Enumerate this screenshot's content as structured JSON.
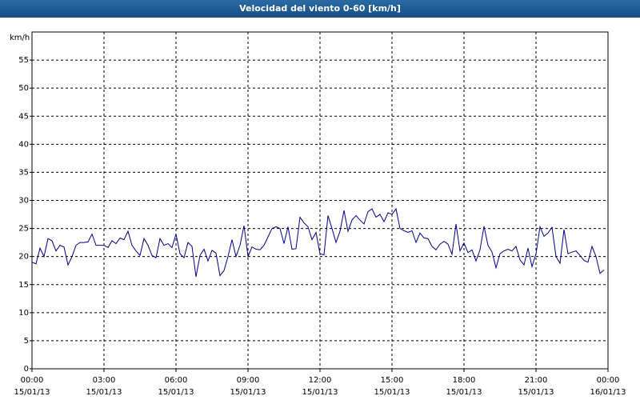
{
  "chart_data": {
    "type": "line",
    "title": "Velocidad del viento 0-60 [km/h]",
    "y_label": "km/h",
    "x": [
      0,
      10,
      20,
      30,
      40,
      50,
      60,
      70,
      80,
      90,
      100,
      110,
      120,
      130,
      140,
      150,
      160,
      170,
      180,
      190,
      200,
      210,
      220,
      230,
      240,
      250,
      260,
      270,
      280,
      290,
      300,
      310,
      320,
      330,
      340,
      350,
      360,
      370,
      380,
      390,
      400,
      410,
      420,
      430,
      440,
      450,
      460,
      470,
      480,
      490,
      500,
      510,
      520,
      530,
      540,
      550,
      560,
      570,
      580,
      590,
      600,
      610,
      620,
      630,
      640,
      650,
      660,
      670,
      680,
      690,
      700,
      710,
      720,
      730,
      740,
      750,
      760,
      770,
      780,
      790,
      800,
      810,
      820,
      830,
      840,
      850,
      860,
      870,
      880,
      890,
      900,
      910,
      920,
      930,
      940,
      950,
      960,
      970,
      980,
      990,
      1000,
      1010,
      1020,
      1030,
      1040,
      1050,
      1060,
      1070,
      1080,
      1090,
      1100,
      1110,
      1120,
      1130,
      1140,
      1150,
      1160,
      1170,
      1180,
      1190,
      1200,
      1210,
      1220,
      1230,
      1240,
      1250,
      1260,
      1270,
      1280,
      1290,
      1300,
      1310,
      1320,
      1330,
      1340,
      1350,
      1360,
      1370,
      1380,
      1390,
      1400,
      1410,
      1420,
      1430
    ],
    "series": [
      {
        "color": "#00008b",
        "values": [
          19,
          18.7,
          21.5,
          20,
          23.2,
          22.8,
          21,
          22,
          21.7,
          18.5,
          20,
          22,
          22.5,
          22.5,
          22.6,
          24,
          22,
          22,
          22,
          21.6,
          22.8,
          22.3,
          23.3,
          23,
          24.5,
          22,
          21,
          20.2,
          23.2,
          22,
          20.2,
          19.8,
          23.2,
          22,
          22.3,
          21.6,
          24,
          20.5,
          19.8,
          22.5,
          21.8,
          16.4,
          20.2,
          21.3,
          19.2,
          21.1,
          20.6,
          16.6,
          17.5,
          20,
          23,
          20,
          22,
          25.5,
          20,
          21.7,
          21.3,
          21.2,
          22,
          23.5,
          25,
          25.3,
          25,
          22.3,
          25.3,
          21.3,
          21.4,
          27,
          26,
          25.3,
          23,
          24.3,
          20.5,
          20.3,
          27.3,
          25,
          22.5,
          24.5,
          28.2,
          24.5,
          26.5,
          27.3,
          26.5,
          25.8,
          28,
          28.5,
          27,
          27.5,
          26.2,
          27.8,
          27.5,
          28.5,
          25,
          24.6,
          24.3,
          24.6,
          22.5,
          24.2,
          23.3,
          23.2,
          21.8,
          21.2,
          22.2,
          22.7,
          22.2,
          20.4,
          25.8,
          21,
          22.4,
          20.7,
          21.2,
          19.2,
          21.2,
          25.4,
          22,
          20.8,
          18,
          20.5,
          21,
          21.3,
          21,
          21.8,
          19.4,
          18.5,
          21.5,
          18.2,
          20.5,
          25.3,
          23.6,
          24.2,
          25.2,
          20,
          18.8,
          24.8,
          20.5,
          20.8,
          21,
          20.2,
          19.3,
          19,
          21.8,
          20,
          17,
          17.6
        ]
      }
    ],
    "xlim": [
      0,
      1440
    ],
    "xticks": [
      {
        "value": 0,
        "label": "00:00"
      },
      {
        "value": 180,
        "label": "03:00"
      },
      {
        "value": 360,
        "label": "06:00"
      },
      {
        "value": 540,
        "label": "09:00"
      },
      {
        "value": 720,
        "label": "12:00"
      },
      {
        "value": 900,
        "label": "15:00"
      },
      {
        "value": 1080,
        "label": "18:00"
      },
      {
        "value": 1260,
        "label": "21:00"
      },
      {
        "value": 1440,
        "label": "00:00"
      }
    ],
    "xtick_dates": [
      "15/01/13",
      "15/01/13",
      "15/01/13",
      "15/01/13",
      "15/01/13",
      "15/01/13",
      "15/01/13",
      "15/01/13",
      "16/01/13"
    ],
    "ylim": [
      0,
      60
    ],
    "yticks": [
      0,
      5,
      10,
      15,
      20,
      25,
      30,
      35,
      40,
      45,
      50,
      55
    ],
    "grid": true
  }
}
